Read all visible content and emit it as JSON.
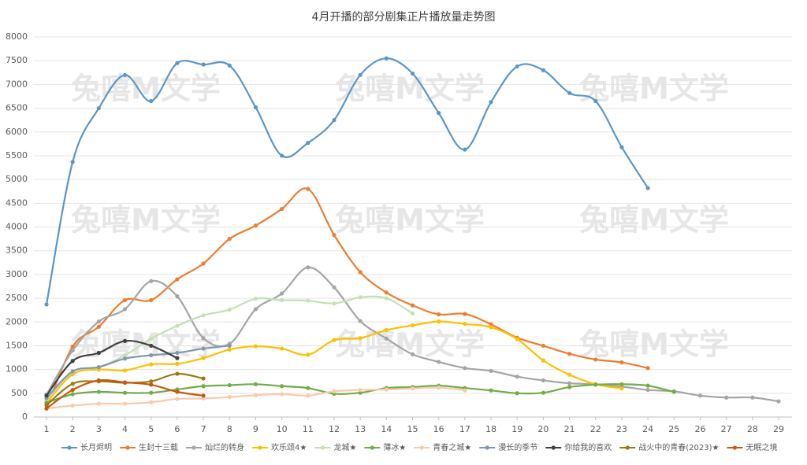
{
  "chart_data": {
    "type": "line",
    "title": "4月开播的部分剧集正片播放量走势图",
    "watermark": "兔嘻M文学",
    "x": [
      1,
      2,
      3,
      4,
      5,
      6,
      7,
      8,
      9,
      10,
      11,
      12,
      13,
      14,
      15,
      16,
      17,
      18,
      19,
      20,
      21,
      22,
      23,
      24,
      25,
      26,
      27,
      28,
      29
    ],
    "ylim": [
      0,
      8000
    ],
    "yticks": [
      0,
      500,
      1000,
      1500,
      2000,
      2500,
      3000,
      3500,
      4000,
      4500,
      5000,
      5500,
      6000,
      6500,
      7000,
      7500,
      8000
    ],
    "grid": true,
    "smooth": true,
    "legend": "bottom",
    "series": [
      {
        "name": "长月烬明",
        "color": "#5a96c8",
        "values": [
          2370,
          5370,
          6500,
          7200,
          6650,
          7450,
          7420,
          7400,
          6520,
          5500,
          5770,
          6250,
          7200,
          7550,
          7230,
          6400,
          5630,
          6630,
          7380,
          7300,
          6820,
          6650,
          5680,
          4820,
          null,
          null,
          null,
          null,
          null
        ]
      },
      {
        "name": "生封十三载",
        "color": "#ed7d31",
        "values": [
          180,
          1480,
          1900,
          2460,
          2460,
          2900,
          3230,
          3750,
          4030,
          4380,
          4800,
          3830,
          3050,
          2620,
          2350,
          2160,
          2170,
          1950,
          1670,
          1500,
          1330,
          1210,
          1150,
          1030,
          null,
          null,
          null,
          null,
          null
        ]
      },
      {
        "name": "灿烂的转身",
        "color": "#a5a5a5",
        "values": [
          470,
          1400,
          2010,
          2270,
          2860,
          2540,
          1660,
          1540,
          2270,
          2600,
          3150,
          2730,
          2020,
          1650,
          1320,
          1160,
          1030,
          970,
          850,
          770,
          710,
          690,
          640,
          570,
          540,
          450,
          410,
          410,
          330
        ]
      },
      {
        "name": "欢乐颂4★",
        "color": "#ffc000",
        "values": [
          300,
          900,
          1000,
          980,
          1110,
          1120,
          1240,
          1420,
          1490,
          1440,
          1310,
          1620,
          1660,
          1830,
          1930,
          2010,
          1960,
          1890,
          1640,
          1190,
          890,
          690,
          600,
          null,
          null,
          null,
          null,
          null,
          null
        ]
      },
      {
        "name": "龙城★",
        "color": "#c5e0b4",
        "values": [
          350,
          950,
          1050,
          1300,
          1650,
          1920,
          2140,
          2260,
          2490,
          2460,
          2450,
          2390,
          2520,
          2500,
          2180,
          null,
          null,
          null,
          null,
          null,
          null,
          null,
          null,
          null,
          null,
          null,
          null,
          null,
          null
        ]
      },
      {
        "name": "薄冰★",
        "color": "#70ad47",
        "values": [
          300,
          480,
          530,
          510,
          510,
          580,
          650,
          670,
          690,
          650,
          610,
          490,
          510,
          610,
          630,
          660,
          610,
          560,
          500,
          510,
          630,
          680,
          690,
          660,
          530,
          null,
          null,
          null,
          null
        ]
      },
      {
        "name": "青春之城★",
        "color": "#f8cbad",
        "values": [
          180,
          240,
          280,
          280,
          310,
          380,
          390,
          420,
          460,
          480,
          450,
          540,
          570,
          580,
          600,
          620,
          560,
          null,
          null,
          null,
          null,
          null,
          null,
          null,
          null,
          null,
          null,
          null,
          null
        ]
      },
      {
        "name": "漫长的季节",
        "color": "#8497b0",
        "values": [
          400,
          960,
          1050,
          1230,
          1300,
          1350,
          1440,
          1500,
          null,
          null,
          null,
          null,
          null,
          null,
          null,
          null,
          null,
          null,
          null,
          null,
          null,
          null,
          null,
          null,
          null,
          null,
          null,
          null,
          null
        ]
      },
      {
        "name": "你给我的喜欢",
        "color": "#404040",
        "values": [
          450,
          1180,
          1350,
          1600,
          1500,
          1240,
          null,
          null,
          null,
          null,
          null,
          null,
          null,
          null,
          null,
          null,
          null,
          null,
          null,
          null,
          null,
          null,
          null,
          null,
          null,
          null,
          null,
          null,
          null
        ]
      },
      {
        "name": "战火中的青春(2023)★",
        "color": "#9e7b12",
        "values": [
          250,
          700,
          750,
          720,
          750,
          910,
          810,
          null,
          null,
          null,
          null,
          null,
          null,
          null,
          null,
          null,
          null,
          null,
          null,
          null,
          null,
          null,
          null,
          null,
          null,
          null,
          null,
          null,
          null
        ]
      },
      {
        "name": "无眠之境",
        "color": "#c55a11",
        "values": [
          180,
          570,
          770,
          730,
          680,
          530,
          450,
          null,
          null,
          null,
          null,
          null,
          null,
          null,
          null,
          null,
          null,
          null,
          null,
          null,
          null,
          null,
          null,
          null,
          null,
          null,
          null,
          null,
          null
        ]
      }
    ]
  }
}
